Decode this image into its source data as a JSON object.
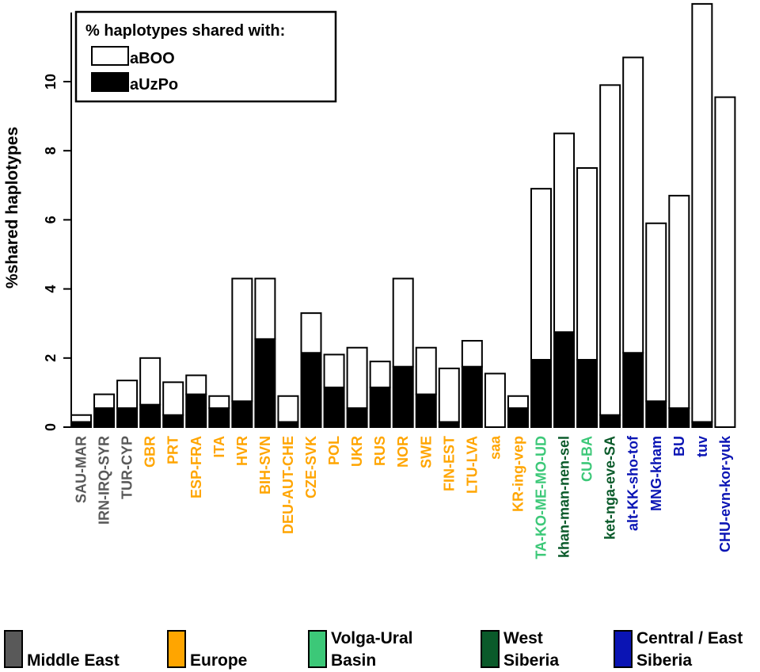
{
  "chart_data": {
    "type": "bar",
    "stacked": true,
    "ylabel": "%shared haplotypes",
    "ylim": [
      0,
      12
    ],
    "yticks": [
      0,
      2,
      4,
      6,
      8,
      10
    ],
    "legend": {
      "title": "% haplotypes shared with:",
      "position": "top-left",
      "entries": [
        {
          "name": "aBOO",
          "color": "#ffffff"
        },
        {
          "name": "aUzPo",
          "color": "#000000"
        }
      ]
    },
    "categories": [
      "SAU-MAR",
      "IRN-IRQ-SYR",
      "TUR-CYP",
      "GBR",
      "PRT",
      "ESP-FRA",
      "ITA",
      "HVR",
      "BIH-SVN",
      "DEU-AUT-CHE",
      "CZE-SVK",
      "POL",
      "UKR",
      "RUS",
      "NOR",
      "SWE",
      "FIN-EST",
      "LTU-LVA",
      "saa",
      "KR-ing-vep",
      "TA-KO-ME-MO-UD",
      "khan-man-nen-sel",
      "CU-BA",
      "ket-nga-eve-SA",
      "alt-KK-sho-tof",
      "MNG-kham",
      "BU",
      "tuv",
      "CHU-evn-kor-yuk"
    ],
    "category_region": [
      "Middle East",
      "Middle East",
      "Middle East",
      "Europe",
      "Europe",
      "Europe",
      "Europe",
      "Europe",
      "Europe",
      "Europe",
      "Europe",
      "Europe",
      "Europe",
      "Europe",
      "Europe",
      "Europe",
      "Europe",
      "Europe",
      "Europe",
      "Europe",
      "Volga-Ural Basin",
      "West Siberia",
      "Volga-Ural Basin",
      "West Siberia",
      "Central / East Siberia",
      "Central / East Siberia",
      "Central / East Siberia",
      "Central / East Siberia",
      "Central / East Siberia"
    ],
    "series": [
      {
        "name": "aBOO",
        "color": "#ffffff",
        "values": [
          0.2,
          0.4,
          0.8,
          1.35,
          0.95,
          0.55,
          0.35,
          3.55,
          1.75,
          0.75,
          1.15,
          0.95,
          1.75,
          0.75,
          2.55,
          1.35,
          1.55,
          0.75,
          1.55,
          0.35,
          4.95,
          5.75,
          5.55,
          9.55,
          8.55,
          5.15,
          6.15,
          12.1,
          9.55
        ]
      },
      {
        "name": "aUzPo",
        "color": "#000000",
        "values": [
          0.15,
          0.55,
          0.55,
          0.65,
          0.35,
          0.95,
          0.55,
          0.75,
          2.55,
          0.15,
          2.15,
          1.15,
          0.55,
          1.15,
          1.75,
          0.95,
          0.15,
          1.75,
          0.0,
          0.55,
          1.95,
          2.75,
          1.95,
          0.35,
          2.15,
          0.75,
          0.55,
          0.15,
          0.0
        ]
      }
    ],
    "regions": [
      {
        "name": "Middle East",
        "color": "#595959"
      },
      {
        "name": "Europe",
        "color": "#FFA500"
      },
      {
        "name": "Volga-Ural Basin",
        "color": "#3CC878"
      },
      {
        "name": "West Siberia",
        "color": "#0A5A2A"
      },
      {
        "name": "Central / East Siberia",
        "color": "#0A14B4"
      }
    ]
  },
  "region_legend": [
    {
      "lines": [
        "Middle East"
      ],
      "color": "#595959"
    },
    {
      "lines": [
        "Europe"
      ],
      "color": "#FFA500"
    },
    {
      "lines": [
        "Volga-Ural",
        "Basin"
      ],
      "color": "#3CC878"
    },
    {
      "lines": [
        "West",
        "Siberia"
      ],
      "color": "#0A5A2A"
    },
    {
      "lines": [
        "Central / East",
        "Siberia"
      ],
      "color": "#0A14B4"
    }
  ]
}
